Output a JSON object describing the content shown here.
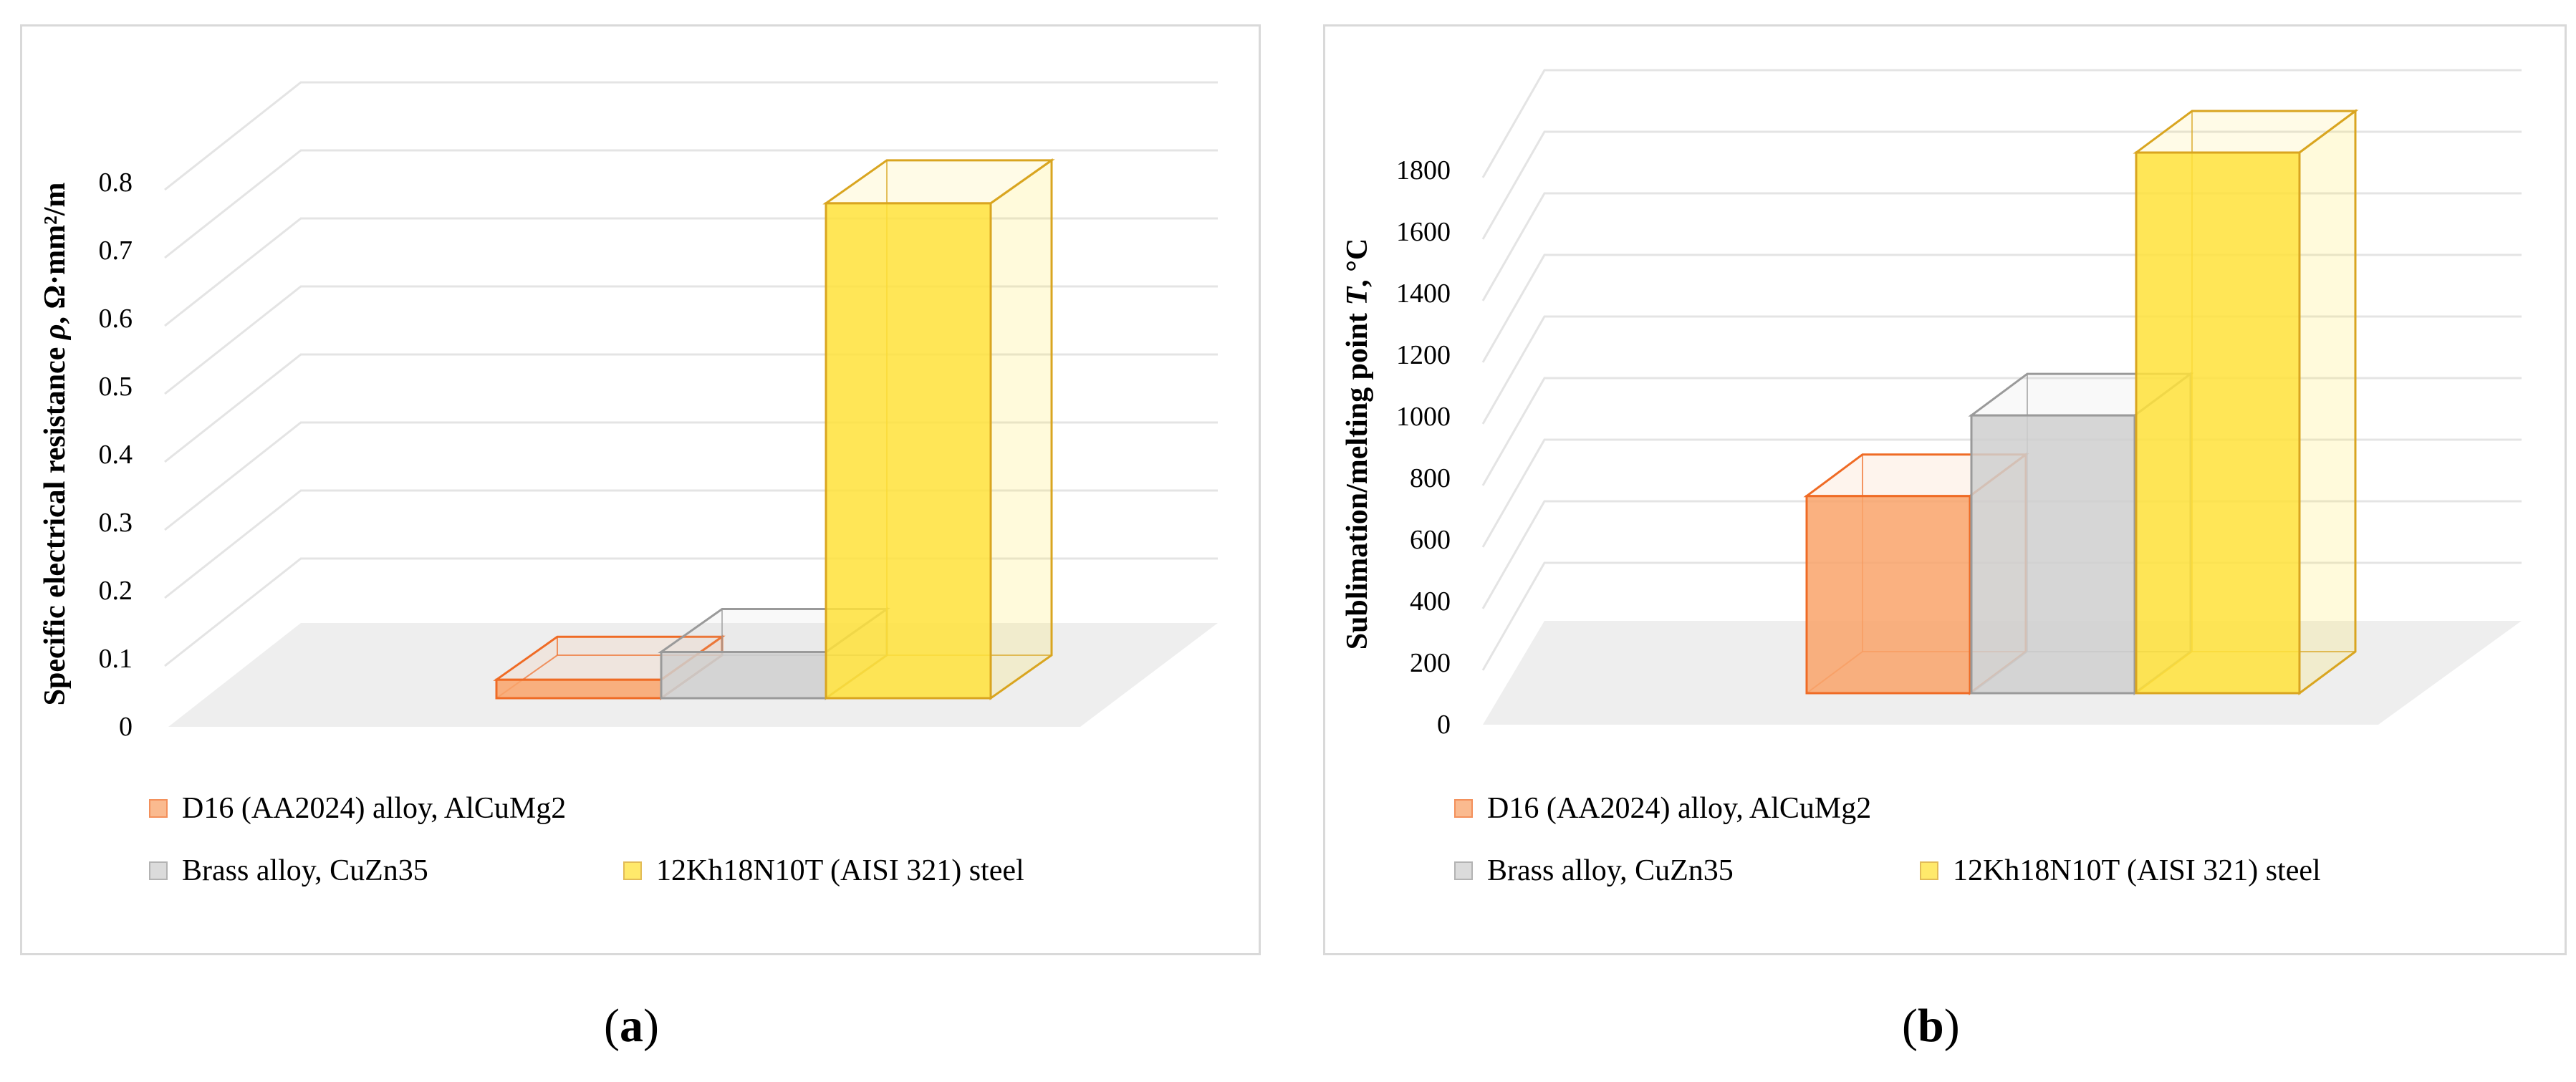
{
  "colors": {
    "series_0": "#f9a36a",
    "series_0_edge": "#ef6b25",
    "series_1": "#cfcfcf",
    "series_1_edge": "#9a9a9a",
    "series_2": "#ffe23a",
    "series_2_edge": "#d9a520",
    "floor": "#eeeeee",
    "grid": "#e4e4e4"
  },
  "chart_data": [
    {
      "id": "a",
      "type": "bar",
      "categories": [
        "D16 (AA2024) alloy, AlCuMg2",
        "Brass alloy, CuZn35",
        "12Kh18N10T (AISI 321) steel"
      ],
      "values": [
        0.028,
        0.07,
        0.75
      ],
      "ylabel_pre": "Specific electrical resistance ",
      "ylabel_sym": "ρ",
      "ylabel_post": ", Ω·mm²/m",
      "yticks": [
        "0",
        "0.1",
        "0.2",
        "0.3",
        "0.4",
        "0.5",
        "0.6",
        "0.7",
        "0.8"
      ],
      "ylim": [
        0,
        0.8
      ],
      "grid": true,
      "legend_position": "bottom"
    },
    {
      "id": "b",
      "type": "bar",
      "categories": [
        "D16 (AA2024) alloy, AlCuMg2",
        "Brass alloy, CuZn35",
        "12Kh18N10T (AISI 321) steel"
      ],
      "values": [
        660,
        930,
        1810
      ],
      "ylabel_pre": "Sublimation/melting point ",
      "ylabel_sym": "T",
      "ylabel_post": ", °C",
      "yticks": [
        "0",
        "200",
        "400",
        "600",
        "800",
        "1000",
        "1200",
        "1400",
        "1600",
        "1800"
      ],
      "ylim": [
        0,
        1800
      ],
      "grid": true,
      "legend_position": "bottom"
    }
  ],
  "captions": {
    "a": {
      "open": "(",
      "letter": "a",
      "close": ")"
    },
    "b": {
      "open": "(",
      "letter": "b",
      "close": ")"
    }
  }
}
